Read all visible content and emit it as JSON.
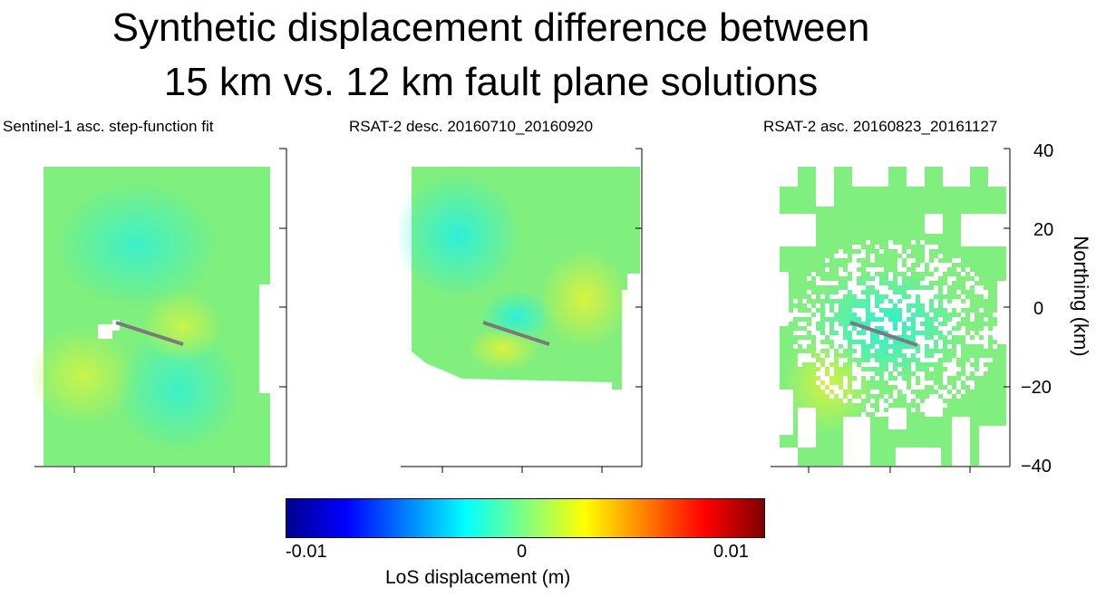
{
  "title_line1": "Synthetic displacement difference between",
  "title_line2": "15 km vs. 12 km fault plane solutions",
  "chart_data": {
    "type": "heatmap",
    "panels": [
      {
        "title": "Sentinel-1 asc. step-function fit"
      },
      {
        "title": "RSAT-2 desc. 20160710_20160920"
      },
      {
        "title": "RSAT-2 asc. 20160823_20161127"
      }
    ],
    "ylabel": "Northing (km)",
    "ylim": [
      -40,
      40
    ],
    "yticks": [
      40,
      20,
      0,
      -20,
      -40
    ],
    "ytick_labels": [
      "40",
      "20",
      "0",
      "−20",
      "−40"
    ],
    "colorbar": {
      "label": "LoS displacement (m)",
      "range": [
        -0.01,
        0.01
      ],
      "tick_labels": [
        "-0.01",
        "0",
        "0.01"
      ],
      "colormap": "jet"
    },
    "fault_trace_color": "#7a7a7a"
  }
}
